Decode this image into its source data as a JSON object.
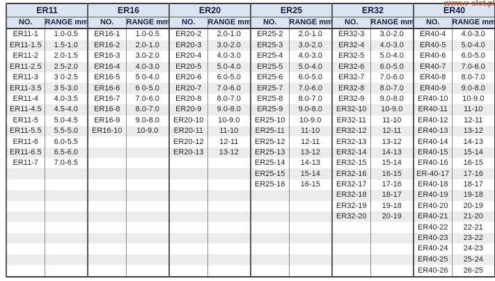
{
  "watermark": {
    "text": "www.v-slot.pl"
  },
  "colors": {
    "header_bg": "#dce4f1",
    "header_text": "#131f44",
    "stripe": "#ececec",
    "border_outer": "#3c3c3c",
    "border_group": "#555555",
    "border_inner": "#8a8a8a",
    "watermark": "#a85535",
    "text": "#222222"
  },
  "chart_data": {
    "type": "table",
    "row_count": 23,
    "col_headers": [
      "NO.",
      "RANGE mm"
    ],
    "groups": [
      {
        "label": "ER11",
        "rows": [
          [
            "ER11-1",
            "1.0-0.5"
          ],
          [
            "ER11-1.5",
            "1.5-1.0"
          ],
          [
            "ER11-2",
            "2.0-1.5"
          ],
          [
            "ER11-2.5",
            "2.5-2.0"
          ],
          [
            "ER11-3",
            "3 0-2.5"
          ],
          [
            "ER11-3.5",
            "3 5-3.0"
          ],
          [
            "ER11-4",
            "4.0-3.5"
          ],
          [
            "ER11-4.5",
            "4.5-4.0"
          ],
          [
            "ER11-5",
            "5.0-4.5"
          ],
          [
            "ER11-5.5",
            "5.5-5.0"
          ],
          [
            "ER11-6",
            "6.0-5.5"
          ],
          [
            "ER11-6.5",
            "6.5-6.0"
          ],
          [
            "ER11-7",
            "7.0-6.5"
          ]
        ]
      },
      {
        "label": "ER16",
        "rows": [
          [
            "ER16-1",
            "1.0-0.5"
          ],
          [
            "ER16-2",
            "2.0-1.0"
          ],
          [
            "ER16-3",
            "3.0-2.0"
          ],
          [
            "ER16-4",
            "4.0-3.0"
          ],
          [
            "ER16-5",
            "5 0-4.0"
          ],
          [
            "ER16-6",
            "6 0-5.0"
          ],
          [
            "ER16-7",
            "7.0-6.0"
          ],
          [
            "ER16-8",
            "8.0-7.0"
          ],
          [
            "ER16-9",
            "9.0-8.0"
          ],
          [
            "ER16-10",
            "10-9.0"
          ]
        ]
      },
      {
        "label": "ER20",
        "rows": [
          [
            "ER20-2",
            "2.0-1.0"
          ],
          [
            "ER20-3",
            "3.0-2.0"
          ],
          [
            "ER20-4",
            "4.0-3.0"
          ],
          [
            "ER20-5",
            "5.0-4.0"
          ],
          [
            "ER20-6",
            "6.0-5.0"
          ],
          [
            "ER20-7",
            "7.0-6.0"
          ],
          [
            "ER20-8",
            "8.0-7.0"
          ],
          [
            "ER20-9",
            "9.0-8.0"
          ],
          [
            "ER20-10",
            "10-9.0"
          ],
          [
            "ER20-11",
            "11-10"
          ],
          [
            "ER20-12",
            "12-11"
          ],
          [
            "ER20-13",
            "13-12"
          ]
        ]
      },
      {
        "label": "ER25",
        "rows": [
          [
            "ER25-2",
            "2.0-1.0"
          ],
          [
            "ER25-3",
            "3.0-2.0"
          ],
          [
            "ER25-4",
            "4.0-3.0"
          ],
          [
            "ER25-5",
            "5.0-4.0"
          ],
          [
            "ER25-6",
            "6.0-5.0"
          ],
          [
            "ER25-7",
            "7.0-6.0"
          ],
          [
            "ER25-8",
            "8.0-7.0"
          ],
          [
            "ER25-9",
            "9.0-8.0"
          ],
          [
            "ER25-10",
            "10-9.0"
          ],
          [
            "ER25-11",
            "11-10"
          ],
          [
            "ER25-12",
            "12-11"
          ],
          [
            "ER25-13",
            "13-12"
          ],
          [
            "ER25-14",
            "14-13"
          ],
          [
            "ER25-15",
            "15-14"
          ],
          [
            "ER25-16",
            "16-15"
          ]
        ]
      },
      {
        "label": "ER32",
        "rows": [
          [
            "ER32-3",
            "3.0-2.0"
          ],
          [
            "ER32-4",
            "4.0-3.0"
          ],
          [
            "ER32-5",
            "5.0-4.0"
          ],
          [
            "ER32-6",
            "6.0-5.0"
          ],
          [
            "ER32-7",
            "7.0-6.0"
          ],
          [
            "ER32-8",
            "8.0-7.0"
          ],
          [
            "ER32-9",
            "9.0-8.0"
          ],
          [
            "ER32-10",
            "10-9.0"
          ],
          [
            "ER32-11",
            "11-10"
          ],
          [
            "ER32-12",
            "12-11"
          ],
          [
            "ER32-13",
            "13-12"
          ],
          [
            "ER32-14",
            "14-13"
          ],
          [
            "ER32-15",
            "15-14"
          ],
          [
            "ER32-16",
            "16-15"
          ],
          [
            "ER32-17",
            "17-16"
          ],
          [
            "ER32-18",
            "18-17"
          ],
          [
            "ER32-19",
            "19-18"
          ],
          [
            "ER32-20",
            "20-19"
          ]
        ]
      },
      {
        "label": "ER40",
        "rows": [
          [
            "ER40-4",
            "4.0-3.0"
          ],
          [
            "ER40-5",
            "5.0-4.0"
          ],
          [
            "ER40-6",
            "6.0-5.0"
          ],
          [
            "ER40-7",
            "7.0-6.0"
          ],
          [
            "ER40-8",
            "8.0-7.0"
          ],
          [
            "ER40-9",
            "9.0-8.0"
          ],
          [
            "ER40-10",
            "10-9.0"
          ],
          [
            "ER40-11",
            "11-10"
          ],
          [
            "ER40-12",
            "12-11"
          ],
          [
            "ER40-13",
            "13-12"
          ],
          [
            "ER40-14",
            "14-13"
          ],
          [
            "ER40-15",
            "15-14"
          ],
          [
            "ER40-16",
            "16-15"
          ],
          [
            "ER-40-17",
            "17-16"
          ],
          [
            "ER40-18",
            "18-17"
          ],
          [
            "ER40-19",
            "19-18"
          ],
          [
            "ER40-20",
            "20-19"
          ],
          [
            "ER40-21",
            "21-20"
          ],
          [
            "ER40-22",
            "22-21"
          ],
          [
            "ER40-23",
            "23-22"
          ],
          [
            "ER40-24",
            "24-23"
          ],
          [
            "ER40-25",
            "25-24"
          ],
          [
            "ER40-26",
            "26-25"
          ]
        ]
      }
    ]
  }
}
